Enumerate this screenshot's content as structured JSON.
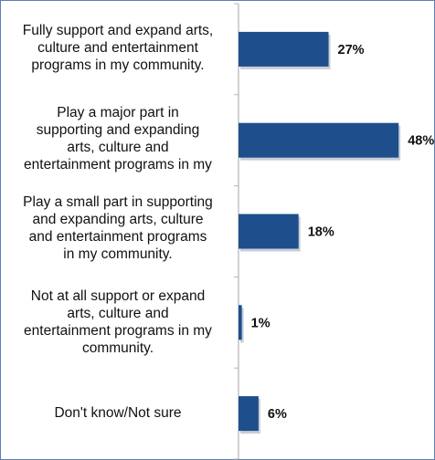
{
  "chart_data": {
    "type": "bar",
    "orientation": "horizontal",
    "categories": [
      "Fully support and expand arts,\nculture and entertainment\nprograms in my community.",
      "Play a major part in\nsupporting and expanding\narts, culture and\nentertainment programs in my",
      "Play a small part in supporting\nand expanding arts, culture\nand entertainment programs\nin my community.",
      "Not at all support or expand\narts, culture and\nentertainment programs in my\ncommunity.",
      "Don't know/Not sure"
    ],
    "values": [
      27,
      48,
      18,
      1,
      6
    ],
    "data_labels": [
      "27%",
      "48%",
      "18%",
      "1%",
      "6%"
    ],
    "title": "",
    "xlabel": "",
    "ylabel": "",
    "xlim": [
      0,
      50
    ],
    "grid": false,
    "legend": "none",
    "colors": {
      "bar": "#1f4e8c",
      "axis": "#b5b5b5",
      "frame": "#5b7fb8"
    }
  }
}
